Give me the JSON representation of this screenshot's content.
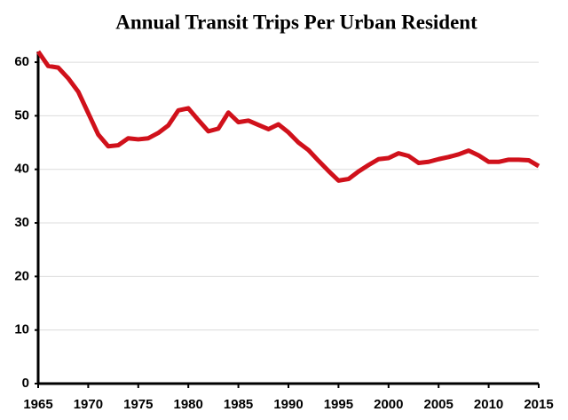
{
  "chart_data": {
    "type": "line",
    "title": "Annual Transit Trips Per Urban Resident",
    "x": [
      1965,
      1966,
      1967,
      1968,
      1969,
      1970,
      1971,
      1972,
      1973,
      1974,
      1975,
      1976,
      1977,
      1978,
      1979,
      1980,
      1981,
      1982,
      1983,
      1984,
      1985,
      1986,
      1987,
      1988,
      1989,
      1990,
      1991,
      1992,
      1993,
      1994,
      1995,
      1996,
      1997,
      1998,
      1999,
      2000,
      2001,
      2002,
      2003,
      2004,
      2005,
      2006,
      2007,
      2008,
      2009,
      2010,
      2011,
      2012,
      2013,
      2014,
      2015
    ],
    "values": [
      62,
      59.3,
      59,
      57,
      54.5,
      50.5,
      46.5,
      44.3,
      44.5,
      45.8,
      45.6,
      45.8,
      46.8,
      48.2,
      51,
      51.4,
      49.2,
      47.1,
      47.6,
      50.6,
      48.8,
      49.1,
      48.3,
      47.5,
      48.4,
      46.9,
      45,
      43.6,
      41.6,
      39.7,
      37.9,
      38.2,
      39.6,
      40.8,
      41.9,
      42.1,
      43,
      42.5,
      41.2,
      41.4,
      41.9,
      42.3,
      42.8,
      43.5,
      42.6,
      41.4,
      41.4,
      41.8,
      41.8,
      41.7,
      40.6
    ],
    "color": "#d0111b",
    "xlim": [
      1965,
      2015
    ],
    "xticks": [
      1965,
      1970,
      1975,
      1980,
      1985,
      1990,
      1995,
      2000,
      2005,
      2010,
      2015
    ],
    "ylim": [
      0,
      62
    ],
    "yticks": [
      0,
      10,
      20,
      30,
      40,
      50,
      60
    ],
    "grid": true
  }
}
